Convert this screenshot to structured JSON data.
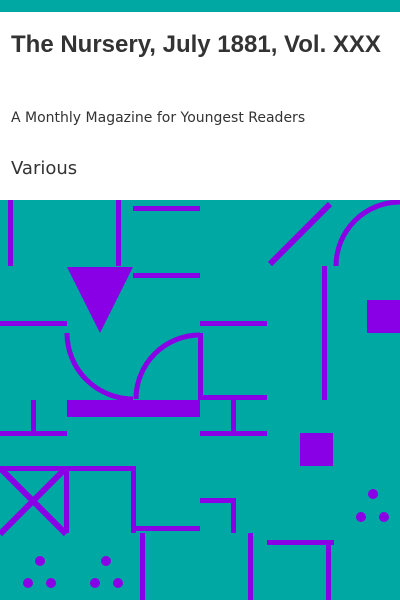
{
  "book": {
    "title": "The Nursery, July 1881, Vol. XXX",
    "subtitle": "A Monthly Magazine for Youngest Readers",
    "author": "Various"
  },
  "colors": {
    "accent_bar": "#00a8a3",
    "art_background": "#00a8a3",
    "art_shapes": "#8a00e6",
    "text": "#333333",
    "header_background": "#ffffff"
  }
}
